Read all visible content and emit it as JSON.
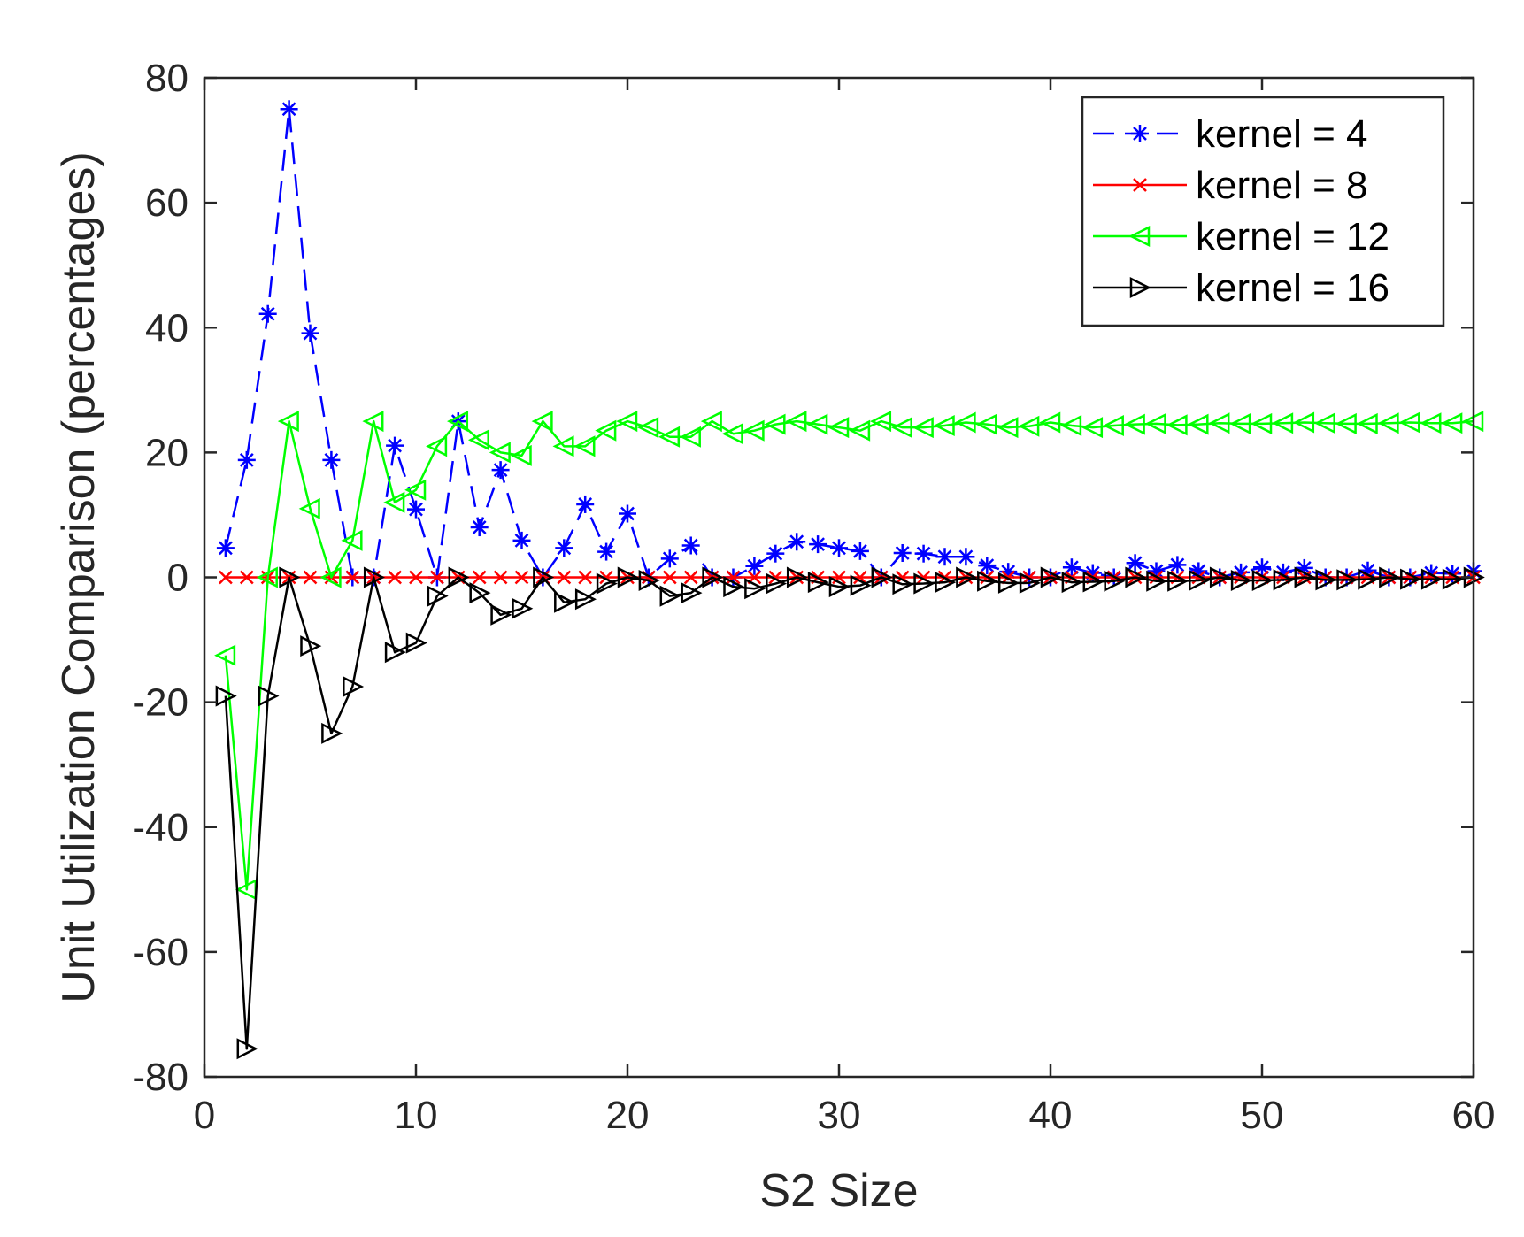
{
  "chart_data": {
    "type": "line",
    "title": "",
    "xlabel": "S2 Size",
    "ylabel": "Unit Utilization Comparison (percentages)",
    "xlim": [
      0,
      60
    ],
    "ylim": [
      -80,
      80
    ],
    "xticks": [
      0,
      10,
      20,
      30,
      40,
      50,
      60
    ],
    "yticks": [
      -80,
      -60,
      -40,
      -20,
      0,
      20,
      40,
      60,
      80
    ],
    "xtick_labels": [
      "0",
      "10",
      "20",
      "30",
      "40",
      "50",
      "60"
    ],
    "ytick_labels": [
      "-80",
      "-60",
      "-40",
      "-20",
      "0",
      "20",
      "40",
      "60",
      "80"
    ],
    "grid": false,
    "legend_position": "top-right",
    "x": [
      1,
      2,
      3,
      4,
      5,
      6,
      7,
      8,
      9,
      10,
      11,
      12,
      13,
      14,
      15,
      16,
      17,
      18,
      19,
      20,
      21,
      22,
      23,
      24,
      25,
      26,
      27,
      28,
      29,
      30,
      31,
      32,
      33,
      34,
      35,
      36,
      37,
      38,
      39,
      40,
      41,
      42,
      43,
      44,
      45,
      46,
      47,
      48,
      49,
      50,
      51,
      52,
      53,
      54,
      55,
      56,
      57,
      58,
      59,
      60
    ],
    "series": [
      {
        "name": "kernel = 4",
        "color": "#0000ff",
        "line_style": "dashed",
        "marker": "asterisk",
        "values": [
          4.7,
          18.8,
          42.2,
          75.0,
          39.1,
          18.8,
          0,
          0,
          21.1,
          10.9,
          0,
          25.0,
          8.0,
          17.2,
          5.9,
          0,
          4.7,
          11.7,
          4.1,
          10.2,
          0,
          3.0,
          5.1,
          0,
          0,
          1.8,
          3.8,
          5.7,
          5.3,
          4.7,
          4.2,
          0,
          3.9,
          3.8,
          3.3,
          3.3,
          1.9,
          0.9,
          0,
          0,
          1.6,
          0.7,
          0,
          2.3,
          1.0,
          2.0,
          1.0,
          0,
          0.8,
          1.6,
          0.8,
          1.5,
          0,
          0,
          1.1,
          0,
          0,
          0.7,
          0.6,
          1.0
        ]
      },
      {
        "name": "kernel = 8",
        "color": "#ff0000",
        "line_style": "solid",
        "marker": "x",
        "values": [
          0,
          0,
          0,
          0,
          0,
          0,
          0,
          0,
          0,
          0,
          0,
          0,
          0,
          0,
          0,
          0,
          0,
          0,
          0,
          0,
          0,
          0,
          0,
          0,
          0,
          0,
          0,
          0,
          0,
          0,
          0,
          0,
          0,
          0,
          0,
          0,
          0,
          0,
          0,
          0,
          0,
          0,
          0,
          0,
          0,
          0,
          0,
          0,
          0,
          0,
          0,
          0,
          0,
          0,
          0,
          0,
          0,
          0,
          0,
          0
        ]
      },
      {
        "name": "kernel = 12",
        "color": "#00ff00",
        "line_style": "solid",
        "marker": "triangle-left",
        "values": [
          -12.5,
          -50.0,
          0,
          25.0,
          11.0,
          0,
          5.9,
          25.0,
          12.0,
          14.0,
          21.0,
          25.0,
          22.0,
          20.0,
          19.5,
          25.0,
          21.0,
          21.0,
          23.5,
          25.0,
          24.0,
          22.5,
          22.5,
          25.0,
          23.0,
          23.5,
          24.5,
          25.0,
          24.5,
          24.0,
          23.5,
          25.0,
          24.0,
          24.0,
          24.3,
          24.8,
          24.5,
          24.0,
          24.2,
          24.8,
          24.3,
          24.0,
          24.3,
          24.5,
          24.6,
          24.4,
          24.5,
          24.7,
          24.6,
          24.6,
          24.7,
          24.8,
          24.7,
          24.6,
          24.6,
          24.7,
          24.8,
          24.7,
          24.7,
          25.0
        ]
      },
      {
        "name": "kernel = 16",
        "color": "#000000",
        "line_style": "solid",
        "marker": "triangle-right",
        "values": [
          -19.0,
          -75.5,
          -19.0,
          0,
          -11.0,
          -25.0,
          -17.5,
          0,
          -12.0,
          -10.5,
          -3.0,
          0,
          -2.5,
          -6.0,
          -5.0,
          0,
          -4.0,
          -3.5,
          -1.0,
          0,
          -0.5,
          -3.0,
          -2.5,
          0,
          -1.5,
          -1.8,
          -1.0,
          0,
          -0.8,
          -1.5,
          -1.3,
          0,
          -1.1,
          -1.0,
          -0.8,
          0,
          -0.6,
          -0.9,
          -0.9,
          0,
          -0.8,
          -0.7,
          -0.6,
          0,
          -0.6,
          -0.6,
          -0.5,
          0,
          -0.5,
          -0.5,
          -0.4,
          0,
          -0.4,
          -0.4,
          -0.3,
          0,
          -0.3,
          -0.3,
          -0.3,
          0
        ]
      }
    ]
  }
}
